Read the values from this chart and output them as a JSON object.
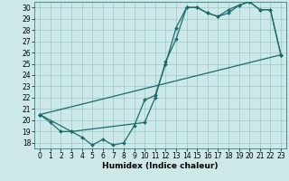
{
  "xlabel": "Humidex (Indice chaleur)",
  "xlim": [
    -0.5,
    23.5
  ],
  "ylim": [
    17.5,
    30.5
  ],
  "xticks": [
    0,
    1,
    2,
    3,
    4,
    5,
    6,
    7,
    8,
    9,
    10,
    11,
    12,
    13,
    14,
    15,
    16,
    17,
    18,
    19,
    20,
    21,
    22,
    23
  ],
  "yticks": [
    18,
    19,
    20,
    21,
    22,
    23,
    24,
    25,
    26,
    27,
    28,
    29,
    30
  ],
  "bg_color": "#cce8e8",
  "line_color": "#1a6b6b",
  "line1": {
    "x": [
      0,
      1,
      2,
      3,
      4,
      5,
      6,
      7,
      8,
      9,
      10,
      11,
      12,
      13,
      14,
      15,
      16,
      17,
      18,
      19,
      20,
      21,
      22,
      23
    ],
    "y": [
      20.5,
      19.8,
      19.0,
      19.0,
      18.5,
      17.8,
      18.3,
      17.8,
      18.0,
      19.5,
      21.8,
      22.2,
      25.0,
      28.2,
      30.0,
      30.0,
      29.5,
      29.2,
      29.5,
      30.2,
      30.5,
      29.8,
      29.8,
      25.8
    ]
  },
  "line2": {
    "x": [
      0,
      3,
      10,
      11,
      12,
      13,
      14,
      15,
      16,
      17,
      18,
      19,
      20,
      21,
      22,
      23
    ],
    "y": [
      20.5,
      19.0,
      19.8,
      22.0,
      25.2,
      27.2,
      30.0,
      30.0,
      29.5,
      29.2,
      29.8,
      30.2,
      30.5,
      29.8,
      29.8,
      25.8
    ]
  },
  "line3": {
    "x": [
      0,
      23
    ],
    "y": [
      20.5,
      25.8
    ]
  }
}
